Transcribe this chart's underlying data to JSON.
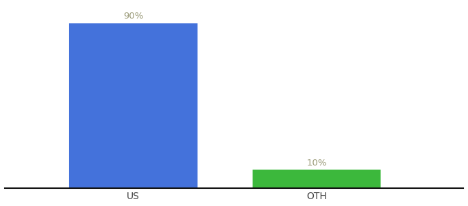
{
  "categories": [
    "US",
    "OTH"
  ],
  "values": [
    90,
    10
  ],
  "bar_colors": [
    "#4472db",
    "#3cb83c"
  ],
  "label_texts": [
    "90%",
    "10%"
  ],
  "background_color": "#ffffff",
  "xlabel": "",
  "ylabel": "",
  "ylim": [
    0,
    100
  ],
  "bar_width": 0.28,
  "label_fontsize": 9.5,
  "tick_fontsize": 10,
  "label_color": "#999977",
  "axis_line_color": "#111111",
  "x_positions": [
    0.28,
    0.68
  ]
}
